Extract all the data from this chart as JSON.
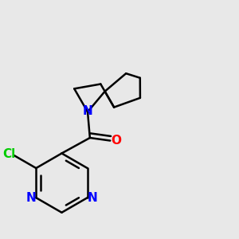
{
  "bg_color": "#e8e8e8",
  "bond_color": "#000000",
  "N_color": "#0000ff",
  "O_color": "#ff0000",
  "Cl_color": "#00cc00",
  "line_width": 1.8,
  "font_size": 11,
  "fig_size": [
    3.0,
    3.0
  ],
  "dpi": 100,
  "xlim": [
    0.08,
    0.92
  ],
  "ylim": [
    0.08,
    0.92
  ]
}
